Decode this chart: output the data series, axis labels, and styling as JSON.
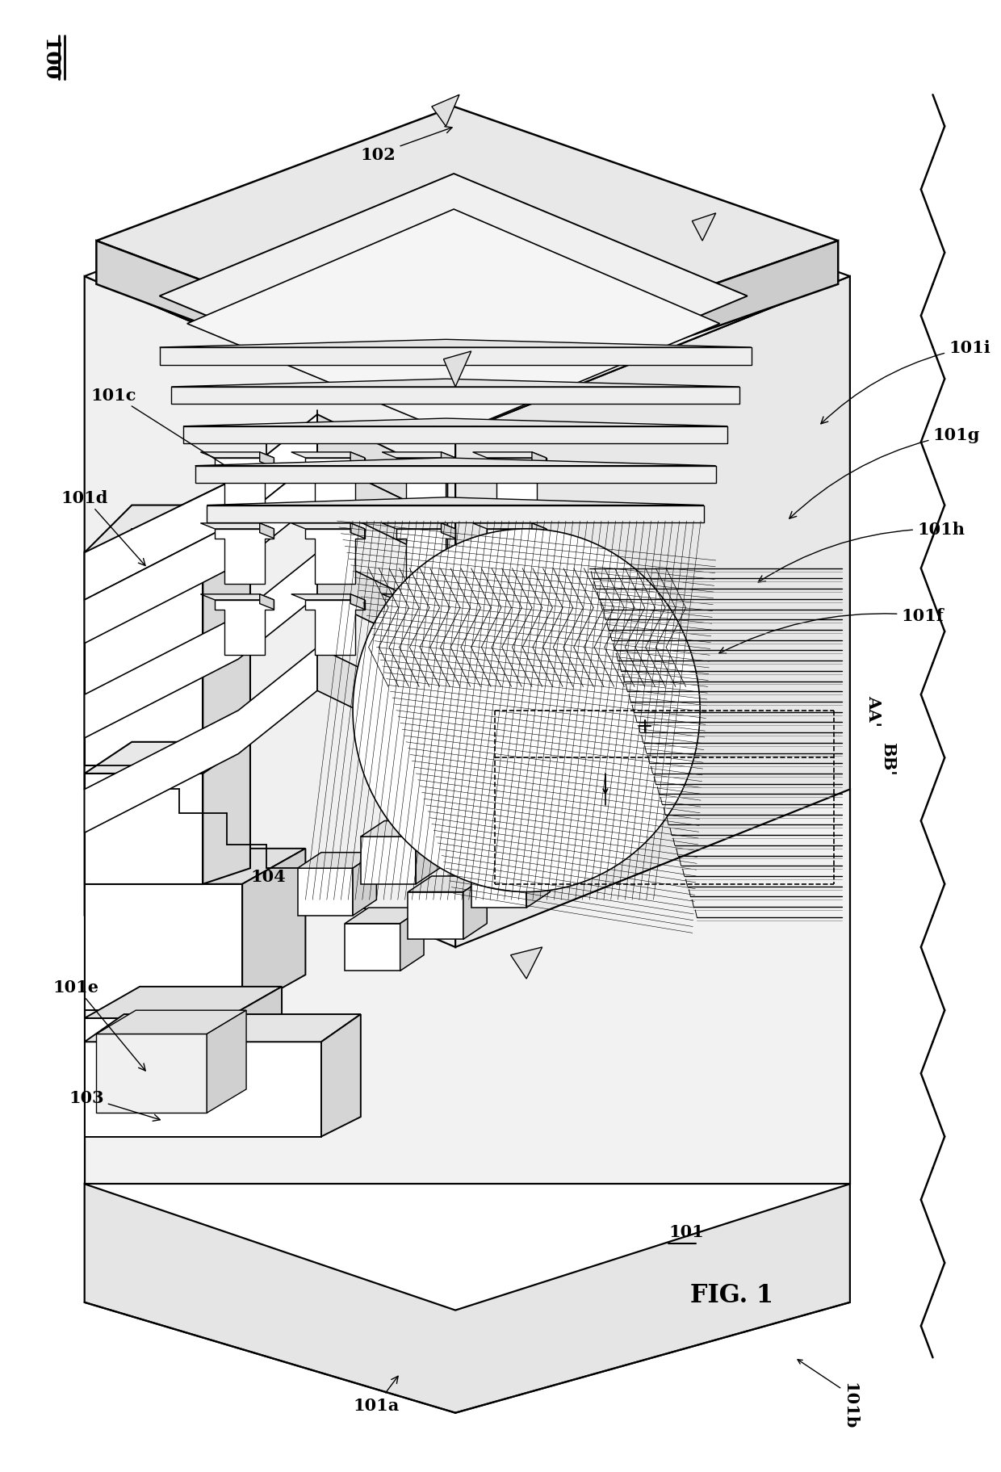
{
  "title": "FIG. 1",
  "bg_color": "#ffffff",
  "line_color": "#000000",
  "label_100": "100",
  "label_101": "101",
  "label_101a": "101a",
  "label_101b": "101b",
  "label_101c": "101c",
  "label_101d": "101d",
  "label_101e": "101e",
  "label_101f": "101f",
  "label_101g": "101g",
  "label_101h": "101h",
  "label_101i": "101i",
  "label_102": "102",
  "label_103": "103",
  "label_104": "104",
  "label_AA": "AA'",
  "label_BB": "BB'"
}
